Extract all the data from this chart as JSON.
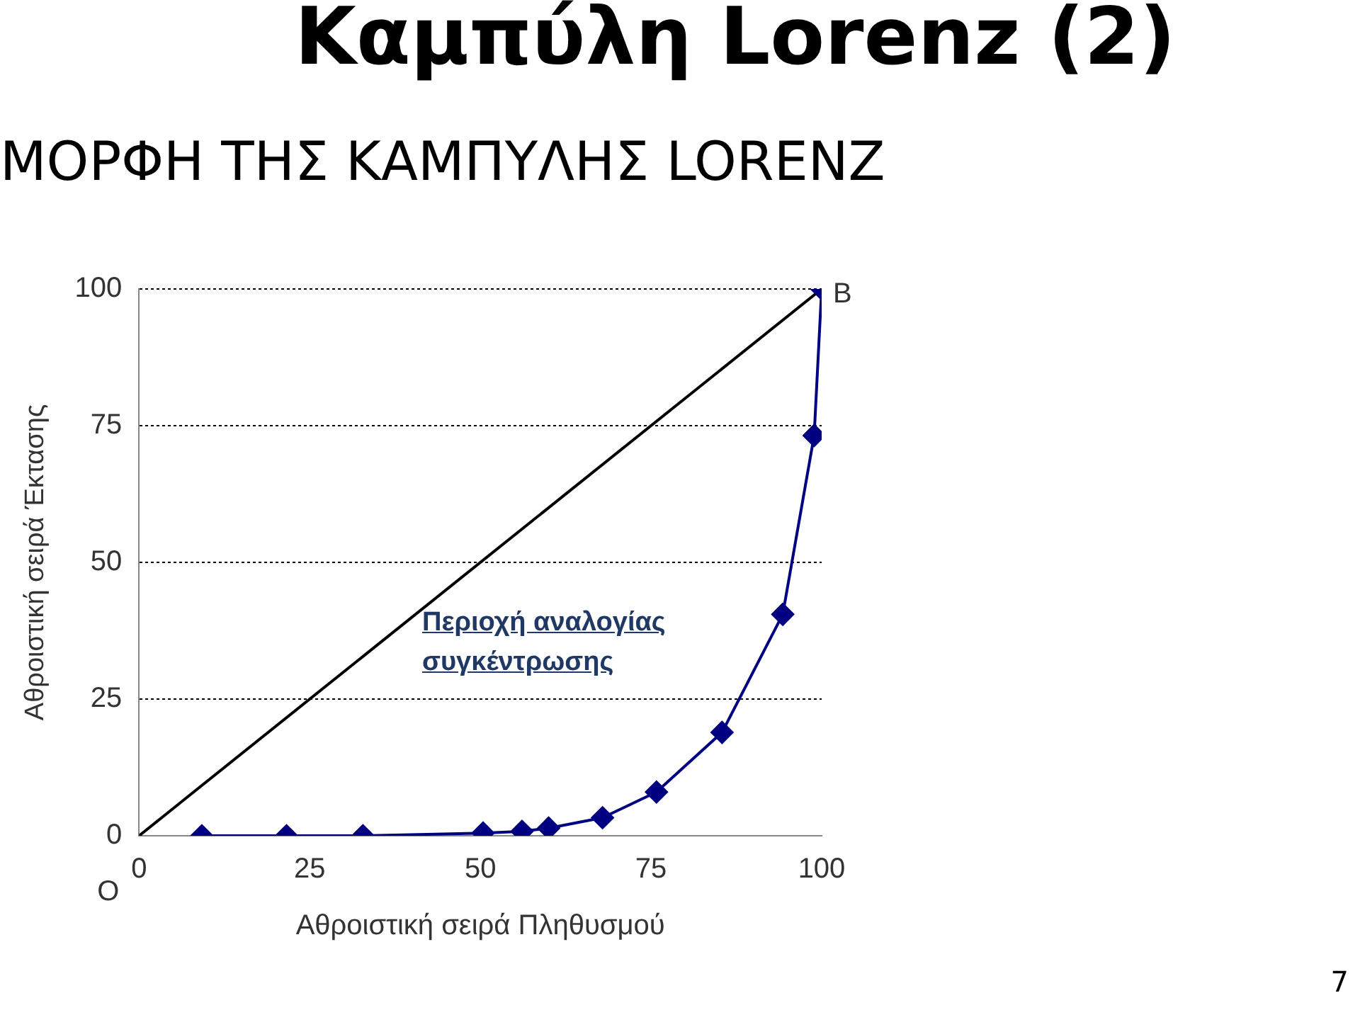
{
  "chart_data": {
    "type": "line",
    "title": "Καμπύλη Lorenz (2)",
    "subtitle": "ΜΟΡΦΗ ΤΗΣ ΚΑΜΠΥΛΗΣ LORENZ",
    "xlabel": "Αθροιστική σειρά Πληθυσμού",
    "ylabel": "Αθροιστική σειρά Έκτασης",
    "series": [
      {
        "color": "#000080",
        "marker": "diamond",
        "x": [
          9.2,
          21.6,
          32.8,
          50.4,
          56.1,
          60,
          67.9,
          75.8,
          85.4,
          94.3,
          98.9,
          100
        ],
        "values": [
          0,
          0,
          0,
          0.5,
          0.8,
          1.4,
          3.3,
          8,
          18.9,
          40.5,
          73.2,
          100
        ]
      },
      {
        "color": "#000000",
        "marker": "none",
        "x": [
          0,
          100
        ],
        "values": [
          0,
          100
        ]
      }
    ],
    "xlim": [
      0,
      100
    ],
    "xticks": [
      0,
      25,
      50,
      75,
      100
    ],
    "ylim": [
      0,
      100
    ],
    "yticks": [
      0,
      25,
      50,
      75,
      100
    ],
    "grid": "y",
    "legend": false,
    "annotations": [
      {
        "text": "O",
        "x": 0,
        "y": 0
      },
      {
        "text": "B",
        "x": 100,
        "y": 100
      },
      "Περιοχή αναλογίας συγκέντρωσης",
      "7"
    ]
  }
}
